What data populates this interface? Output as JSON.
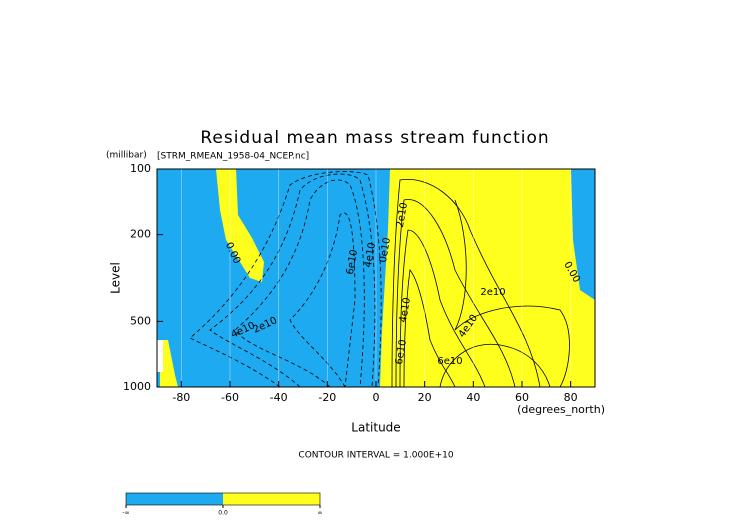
{
  "chart_data": {
    "type": "contour",
    "title": "Residual mean mass stream function",
    "subtitle": "[STRM_RMEAN_1958-04_NCEP.nc]",
    "y_unit": "(millibar)",
    "x_unit": "(degrees_north)",
    "xlabel": "Latitude",
    "ylabel": "Level",
    "xlim": [
      -90,
      90
    ],
    "xticks": [
      -80,
      -60,
      -40,
      -20,
      0,
      20,
      40,
      60,
      80
    ],
    "ylim": [
      1000,
      100
    ],
    "yticks": [
      100,
      200,
      500,
      1000
    ],
    "log_y": true,
    "grid": true,
    "note": "CONTOUR INTERVAL = 1.000E+10",
    "contour_labels": [
      "0.00",
      "6e10",
      "4e10",
      "0e10",
      "2e10",
      "4e10",
      "6e10",
      "2e10",
      "4e10",
      "6e10",
      "0.00",
      "4e10",
      "2e10"
    ],
    "colorbar": {
      "colors": [
        "#1eaaf0",
        "#ffff1e"
      ],
      "labels": [
        "-∞",
        "0.0",
        "∞"
      ]
    }
  }
}
